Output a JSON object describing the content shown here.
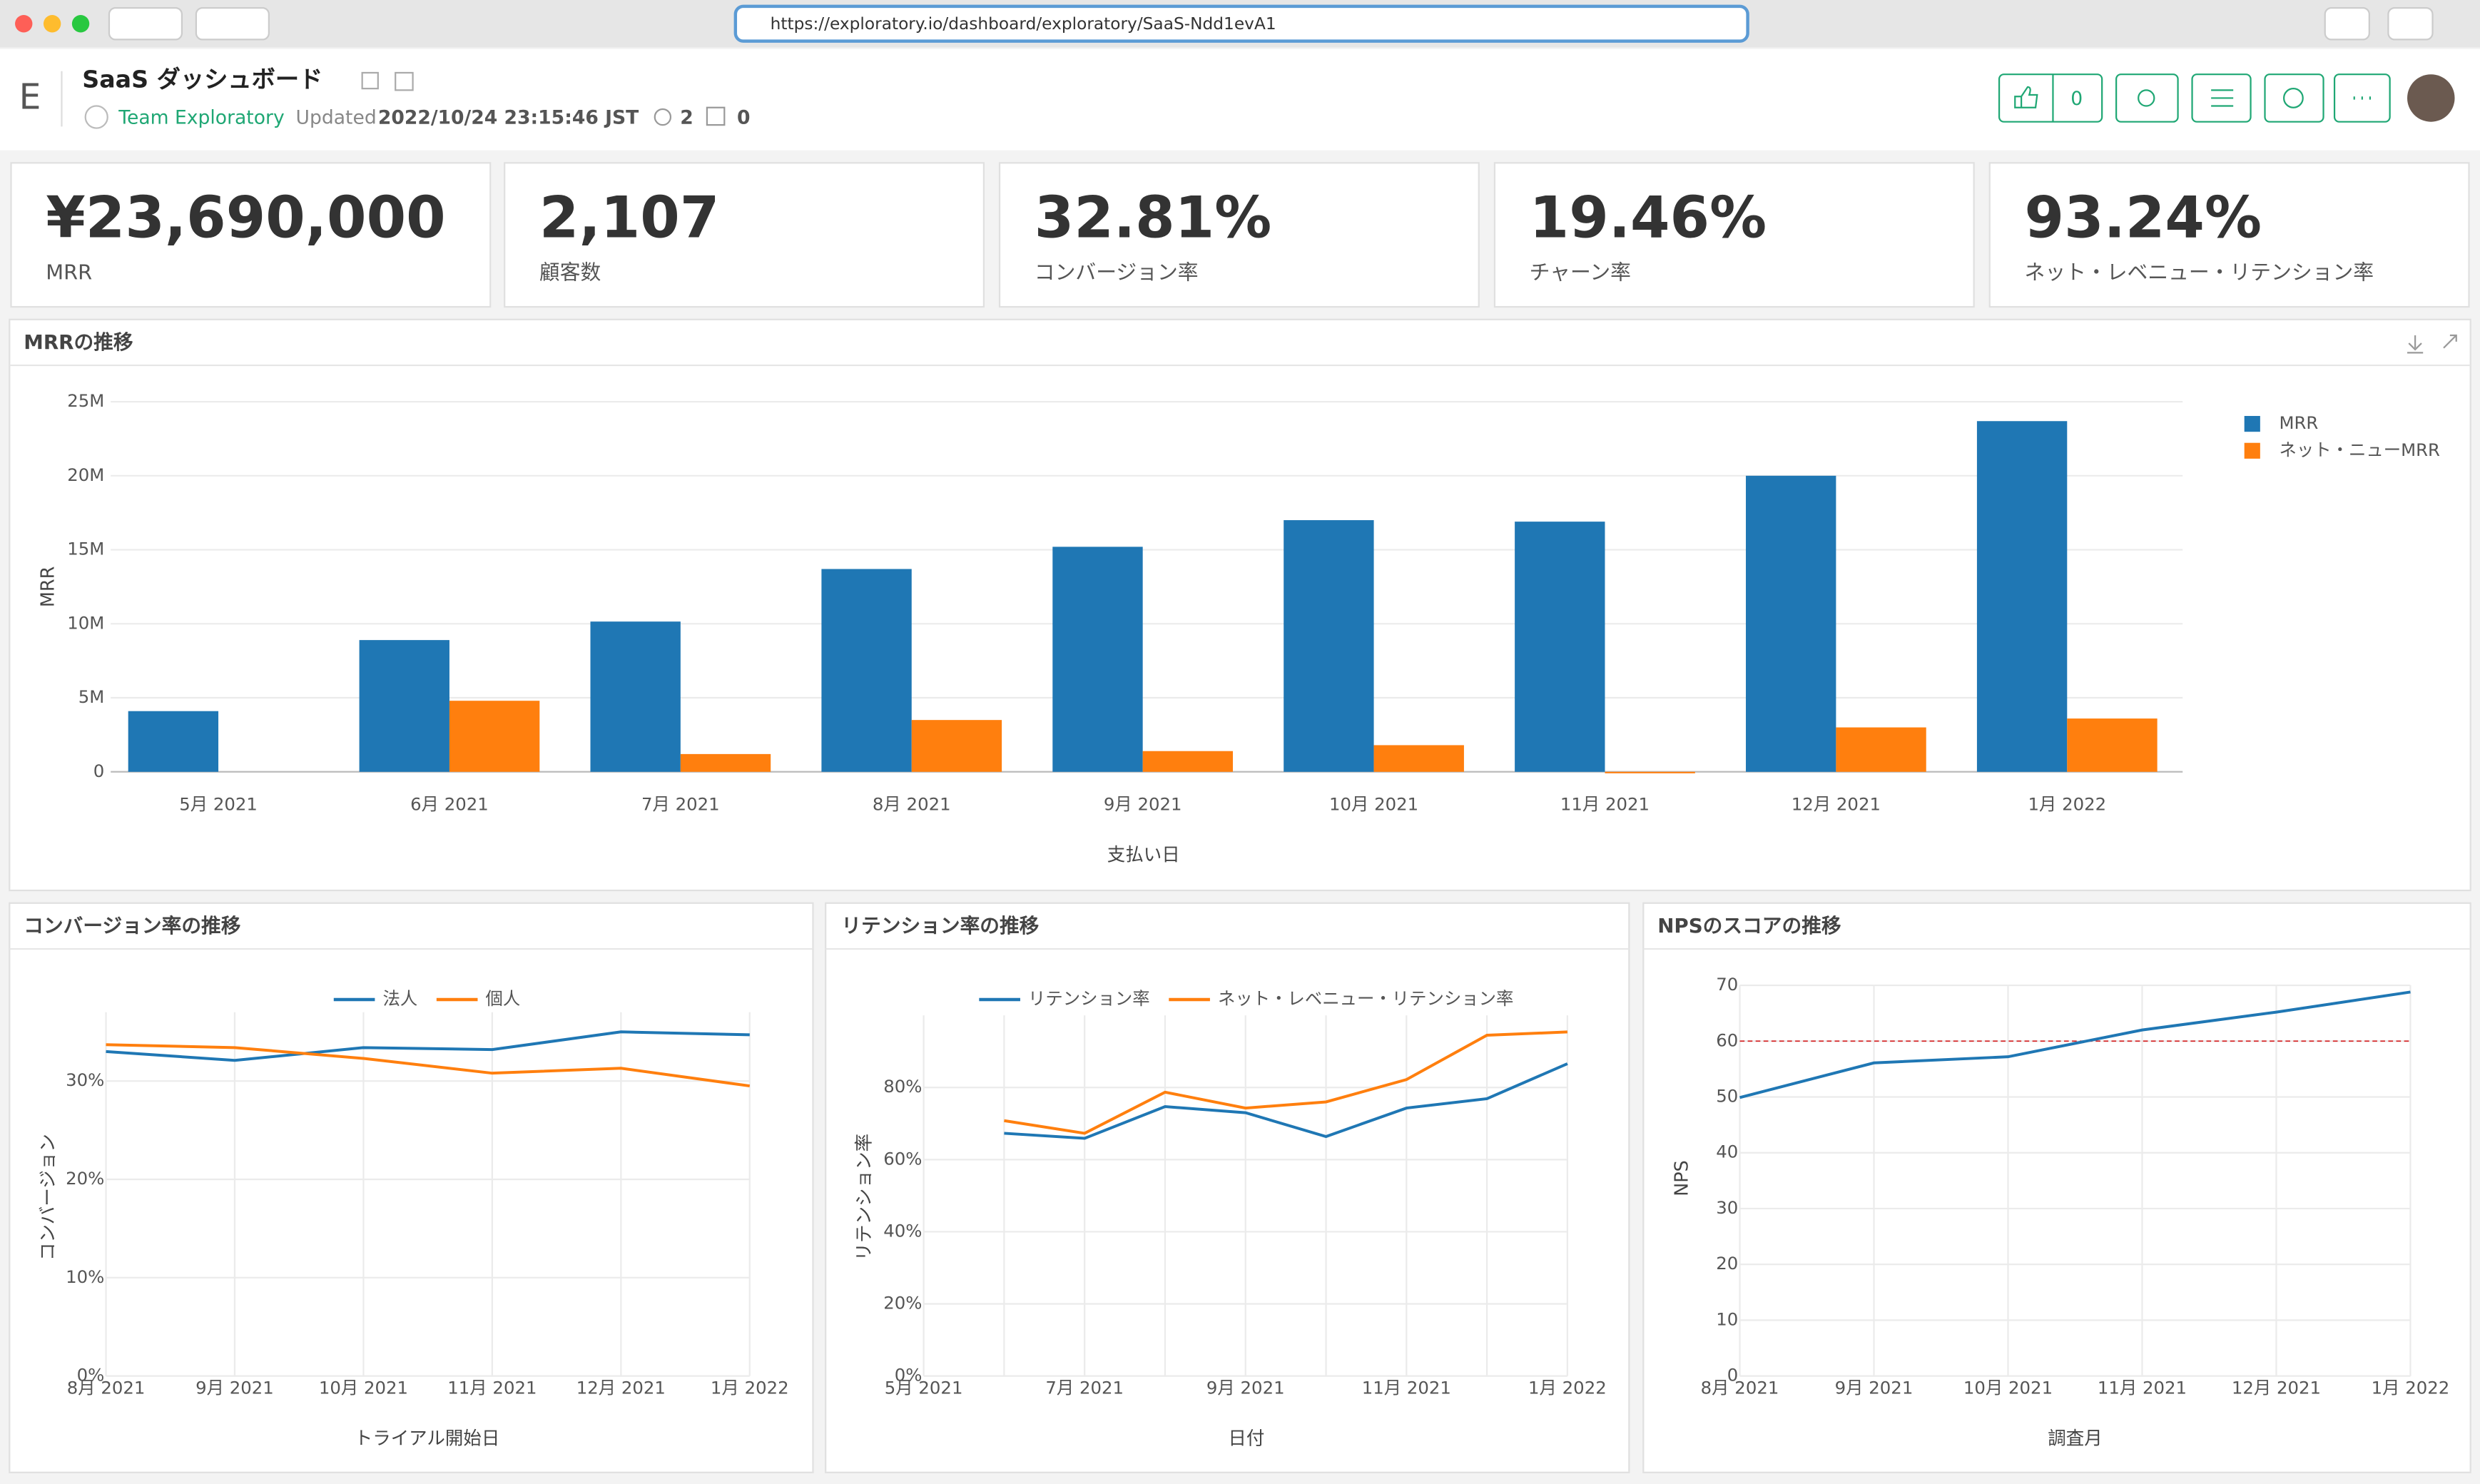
{
  "browser": {
    "url": "https://exploratory.io/dashboard/exploratory/SaaS-Ndd1evA1"
  },
  "header": {
    "logo": "E",
    "title": "SaaS ダッシュボード",
    "team": "Team Exploratory",
    "updated_label": "Updated",
    "updated": "2022/10/24 23:15:46 JST",
    "views": "2",
    "downloads": "0",
    "likes": "0"
  },
  "kpis": [
    {
      "value": "¥23,690,000",
      "label": "MRR"
    },
    {
      "value": "2,107",
      "label": "顧客数"
    },
    {
      "value": "32.81%",
      "label": "コンバージョン率"
    },
    {
      "value": "19.46%",
      "label": "チャーン率"
    },
    {
      "value": "93.24%",
      "label": "ネット・レベニュー・リテンション率"
    }
  ],
  "chart_data": [
    {
      "type": "bar",
      "title": "MRRの推移",
      "y_label": "MRR",
      "x_label": "支払い日",
      "categories": [
        "5月 2021",
        "6月 2021",
        "7月 2021",
        "8月 2021",
        "9月 2021",
        "10月 2021",
        "11月 2021",
        "12月 2021",
        "1月 2022"
      ],
      "series": [
        {
          "name": "MRR",
          "color": "#1f77b4",
          "values": [
            4100000,
            8900000,
            10150000,
            13700000,
            15200000,
            17000000,
            16900000,
            20000000,
            23690000
          ]
        },
        {
          "name": "ネット・ニューMRR",
          "color": "#ff7f0e",
          "values": [
            null,
            4800000,
            1200000,
            3500000,
            1400000,
            1800000,
            -100000,
            3000000,
            3600000
          ]
        }
      ],
      "ylim": [
        0,
        25000000
      ],
      "yticks": [
        0,
        {
          "value": 5000000,
          "label": "5M"
        },
        {
          "value": 10000000,
          "label": "10M"
        },
        {
          "value": 15000000,
          "label": "15M"
        },
        {
          "value": 20000000,
          "label": "20M"
        },
        {
          "value": 25000000,
          "label": "25M"
        }
      ],
      "grid": true,
      "legend": "right"
    },
    {
      "type": "line",
      "title": "コンバージョン率の推移",
      "y_label": "コンバージョン",
      "x_label": "トライアル開始日",
      "categories": [
        "8月 2021",
        "9月 2021",
        "10月 2021",
        "11月 2021",
        "12月 2021",
        "1月 2022"
      ],
      "series": [
        {
          "name": "法人",
          "color": "#1f77b4",
          "values": [
            33.0,
            32.1,
            33.4,
            33.2,
            35.0,
            34.7
          ]
        },
        {
          "name": "個人",
          "color": "#ff7f0e",
          "values": [
            33.7,
            33.4,
            32.3,
            30.8,
            31.3,
            29.5
          ]
        }
      ],
      "ylim": [
        0,
        37
      ],
      "yticks": [
        {
          "value": 0,
          "label": "0%"
        },
        {
          "value": 10,
          "label": "10%"
        },
        {
          "value": 20,
          "label": "20%"
        },
        {
          "value": 30,
          "label": "30%"
        }
      ],
      "grid": true,
      "legend": "top"
    },
    {
      "type": "line",
      "title": "リテンション率の推移",
      "y_label": "リテンション率",
      "x_label": "日付",
      "categories": [
        "5月 2021",
        null,
        "7月 2021",
        null,
        "9月 2021",
        null,
        "11月 2021",
        null,
        "1月 2022"
      ],
      "series": [
        {
          "name": "リテンション率",
          "color": "#1f77b4",
          "values": [
            null,
            67.3,
            65.9,
            74.7,
            73.0,
            66.4,
            74.3,
            76.9,
            86.6
          ]
        },
        {
          "name": "ネット・レベニュー・リテンション率",
          "color": "#ff7f0e",
          "values": [
            null,
            70.8,
            67.3,
            78.7,
            74.3,
            76.0,
            82.2,
            94.5,
            95.4
          ]
        }
      ],
      "ylim": [
        0,
        100
      ],
      "yticks": [
        {
          "value": 0,
          "label": "0%"
        },
        {
          "value": 20,
          "label": "20%"
        },
        {
          "value": 40,
          "label": "40%"
        },
        {
          "value": 60,
          "label": "60%"
        },
        {
          "value": 80,
          "label": "80%"
        }
      ],
      "grid": true,
      "legend": "top"
    },
    {
      "type": "line",
      "title": "NPSのスコアの推移",
      "y_label": "NPS",
      "x_label": "調査月",
      "categories": [
        "8月 2021",
        "9月 2021",
        "10月 2021",
        "11月 2021",
        "12月 2021",
        "1月 2022"
      ],
      "series": [
        {
          "color": "#1f77b4",
          "values": [
            49.9,
            56.1,
            57.2,
            62.0,
            65.2,
            68.8
          ]
        }
      ],
      "reference_line": {
        "value": 60,
        "color": "#d62728"
      },
      "ylim": [
        0,
        70
      ],
      "yticks": [
        0,
        10,
        20,
        30,
        40,
        50,
        60,
        70
      ],
      "grid": true
    }
  ]
}
